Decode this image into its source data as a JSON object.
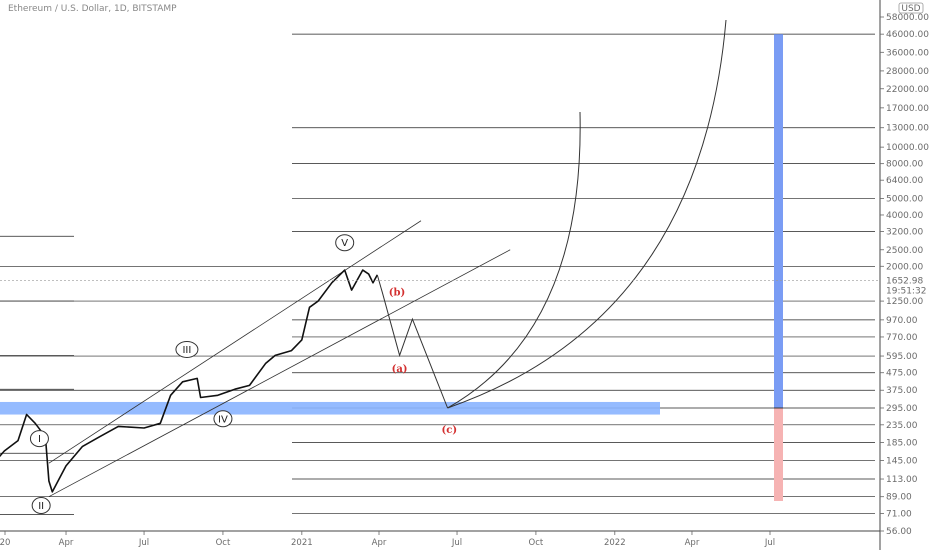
{
  "header": {
    "symbol_title": "Ethereum / U.S. Dollar, 1D, BITSTAMP"
  },
  "chart_data": {
    "type": "line",
    "title": "Ethereum / U.S. Dollar, 1D, BITSTAMP",
    "yscale": "log",
    "currency": "USD",
    "x_ticks": [
      "20",
      "Apr",
      "Jul",
      "Oct",
      "2021",
      "Apr",
      "Jul",
      "Oct",
      "2022",
      "Apr",
      "Jul"
    ],
    "y_ticks": [
      "56.00",
      "71.00",
      "89.00",
      "113.00",
      "145.00",
      "185.00",
      "235.00",
      "295.00",
      "375.00",
      "475.00",
      "595.00",
      "770.00",
      "970.00",
      "1250.00",
      "2000.00",
      "2500.00",
      "3200.00",
      "4000.00",
      "5000.00",
      "6400.00",
      "8000.00",
      "10000.00",
      "13000.00",
      "17000.00",
      "22000.00",
      "28000.00",
      "36000.00",
      "46000.00",
      "58000.00"
    ],
    "last_price": "1652.98",
    "countdown": "19:51:32",
    "series": [
      {
        "values": [
          [
            "2020-01-01",
            128
          ],
          [
            "2020-01-20",
            165
          ],
          [
            "2020-02-05",
            190
          ],
          [
            "2020-02-15",
            270
          ],
          [
            "2020-02-25",
            240
          ],
          [
            "2020-03-08",
            200
          ],
          [
            "2020-03-12",
            110
          ],
          [
            "2020-03-16",
            95
          ],
          [
            "2020-04-01",
            135
          ],
          [
            "2020-04-20",
            175
          ],
          [
            "2020-05-10",
            200
          ],
          [
            "2020-06-01",
            230
          ],
          [
            "2020-07-01",
            225
          ],
          [
            "2020-07-20",
            240
          ],
          [
            "2020-08-01",
            350
          ],
          [
            "2020-08-15",
            420
          ],
          [
            "2020-09-01",
            440
          ],
          [
            "2020-09-05",
            340
          ],
          [
            "2020-09-25",
            350
          ],
          [
            "2020-10-15",
            380
          ],
          [
            "2020-11-01",
            400
          ],
          [
            "2020-11-20",
            540
          ],
          [
            "2020-12-01",
            600
          ],
          [
            "2020-12-20",
            640
          ],
          [
            "2021-01-01",
            740
          ],
          [
            "2021-01-10",
            1150
          ],
          [
            "2021-01-20",
            1250
          ],
          [
            "2021-02-05",
            1600
          ],
          [
            "2021-02-20",
            1900
          ],
          [
            "2021-02-28",
            1450
          ],
          [
            "2021-03-13",
            1900
          ],
          [
            "2021-03-20",
            1800
          ],
          [
            "2021-03-25",
            1600
          ],
          [
            "2021-03-30",
            1780
          ]
        ]
      }
    ],
    "projection": [
      [
        "2021-04-05",
        1400
      ],
      [
        "2021-04-25",
        600
      ],
      [
        "2021-05-10",
        980
      ],
      [
        "2021-06-20",
        295
      ]
    ],
    "horizontal_levels": [
      56,
      71,
      89,
      113,
      145,
      185,
      235,
      295,
      375,
      475,
      595,
      770,
      970,
      1250,
      2000,
      3200,
      5000,
      8000,
      13000,
      46000
    ],
    "support_zone": {
      "low": 270,
      "high": 320
    },
    "targets": {
      "reward_high": 46000,
      "entry": 295,
      "risk_low": 84
    },
    "wave_labels": [
      {
        "text": "I",
        "date": "2020-03-01",
        "price": 195
      },
      {
        "text": "II",
        "date": "2020-03-03",
        "price": 79
      },
      {
        "text": "III",
        "date": "2020-08-20",
        "price": 650
      },
      {
        "text": "IV",
        "date": "2020-10-01",
        "price": 255
      },
      {
        "text": "V",
        "date": "2021-02-20",
        "price": 2750
      }
    ],
    "corrective_labels": [
      {
        "text": "(b)",
        "date": "2021-04-22",
        "price": 1350
      },
      {
        "text": "(a)",
        "date": "2021-04-25",
        "price": 480
      },
      {
        "text": "(c)",
        "date": "2021-06-22",
        "price": 210
      }
    ],
    "channel": {
      "upper": [
        [
          "2020-03-12",
          140
        ],
        [
          "2021-05-20",
          3700
        ]
      ],
      "lower": [
        [
          "2020-03-12",
          89
        ],
        [
          "2021-09-01",
          2500
        ]
      ]
    },
    "fib_arcs_center": [
      "2021-06-20",
      295
    ],
    "colors": {
      "zone": "#8ab4ff",
      "reward": "#7a9cf4",
      "risk": "#f6b3b3",
      "price": "#111111",
      "red_label": "#d32f2f",
      "grid": "#222222"
    }
  }
}
